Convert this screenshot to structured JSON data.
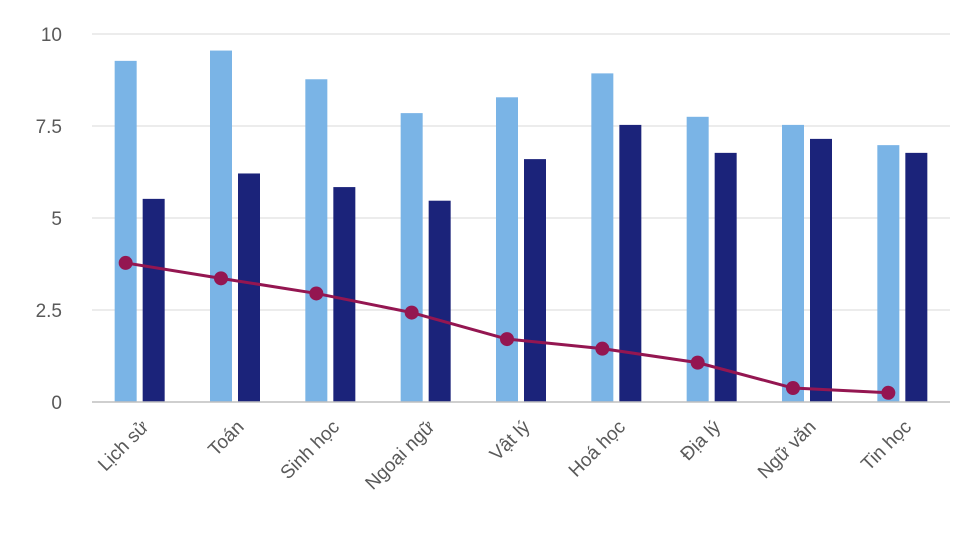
{
  "chart_data": {
    "type": "bar",
    "categories": [
      "Lịch sử",
      "Toán",
      "Sinh học",
      "Ngoại ngữ",
      "Vật lý",
      "Hoá học",
      "Địa lý",
      "Ngữ văn",
      "Tin học"
    ],
    "series": [
      {
        "type": "bar",
        "color": "#7ab4e6",
        "values": [
          9.27,
          9.55,
          8.77,
          7.85,
          8.28,
          8.93,
          7.75,
          7.53,
          6.98
        ]
      },
      {
        "type": "bar",
        "color": "#1b237a",
        "values": [
          5.52,
          6.21,
          5.84,
          5.47,
          6.6,
          7.53,
          6.77,
          7.15,
          6.77
        ]
      },
      {
        "type": "line",
        "color": "#941651",
        "marker": "circle",
        "values": [
          3.78,
          3.36,
          2.95,
          2.43,
          1.71,
          1.45,
          1.07,
          0.38,
          0.25
        ]
      }
    ],
    "ylim": [
      0,
      10
    ],
    "yticks": [
      "0",
      "2.5",
      "5",
      "7.5",
      "10"
    ],
    "grid": true,
    "title": "",
    "xlabel": "",
    "ylabel": ""
  }
}
